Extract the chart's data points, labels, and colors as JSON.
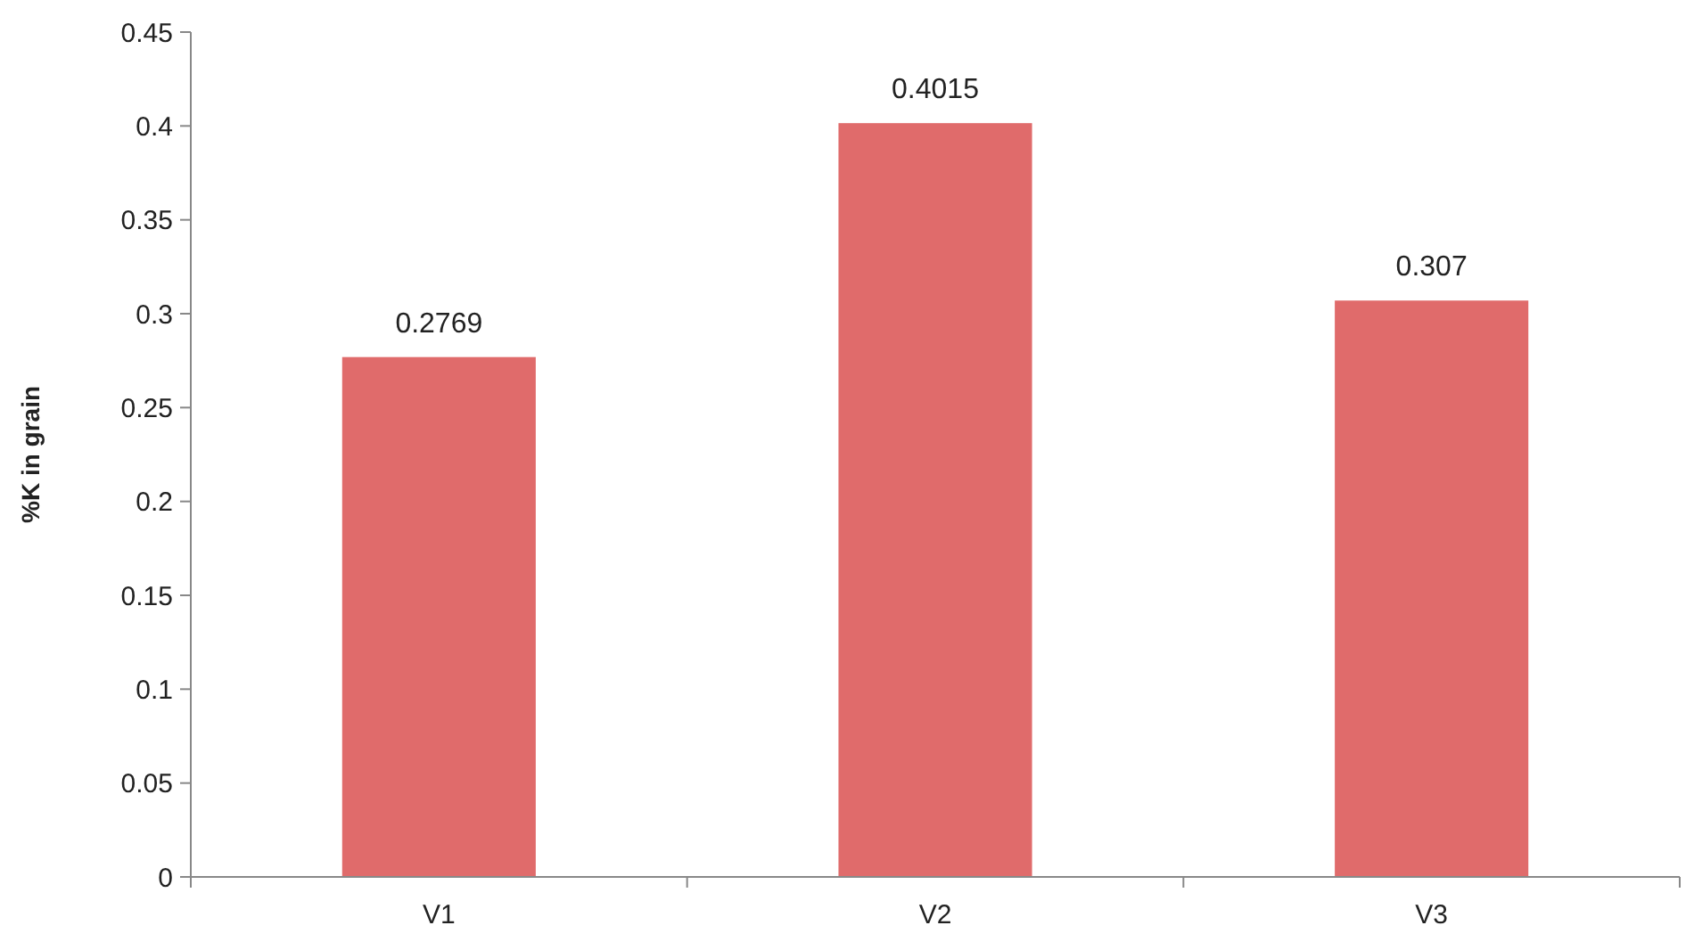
{
  "chart_data": {
    "type": "bar",
    "ylabel": "%K in grain",
    "categories": [
      "V1",
      "V2",
      "V3"
    ],
    "values": [
      0.2769,
      0.4015,
      0.307
    ],
    "color": "#e06b6b",
    "ylim": [
      0,
      0.45
    ],
    "yticks": [
      0,
      0.05,
      0.1,
      0.15,
      0.2,
      0.25,
      0.3,
      0.35,
      0.4,
      0.45
    ],
    "data_labels": true
  }
}
